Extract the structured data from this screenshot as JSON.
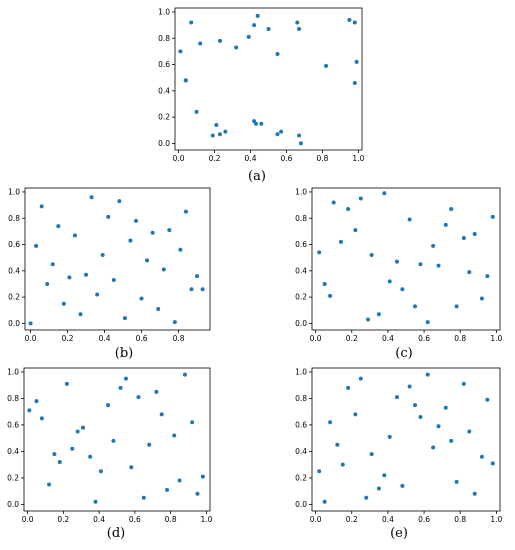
{
  "chart_data": [
    {
      "type": "scatter",
      "panel_label": "(a)",
      "color": "#1f77b4",
      "xlim": [
        -0.02,
        1.02
      ],
      "ylim": [
        -0.05,
        1.03
      ],
      "xticks": [
        "0.0",
        "0.2",
        "0.4",
        "0.6",
        "0.8",
        "1.0"
      ],
      "yticks": [
        "0.0",
        "0.2",
        "0.4",
        "0.6",
        "0.8",
        "1.0"
      ],
      "x": [
        0.01,
        0.04,
        0.07,
        0.12,
        0.23,
        0.32,
        0.39,
        0.42,
        0.44,
        0.5,
        0.55,
        0.66,
        0.67,
        0.95,
        0.98,
        0.99,
        0.82,
        0.04,
        0.1,
        0.21,
        0.23,
        0.26,
        0.19,
        0.42,
        0.43,
        0.46,
        0.55,
        0.57,
        0.67,
        0.68,
        0.98
      ],
      "y": [
        0.7,
        0.48,
        0.92,
        0.76,
        0.78,
        0.73,
        0.81,
        0.9,
        0.97,
        0.87,
        0.68,
        0.92,
        0.87,
        0.94,
        0.92,
        0.62,
        0.59,
        0.48,
        0.24,
        0.14,
        0.07,
        0.09,
        0.06,
        0.17,
        0.15,
        0.15,
        0.07,
        0.09,
        0.06,
        0.0,
        0.46
      ]
    },
    {
      "type": "scatter",
      "panel_label": "(b)",
      "color": "#1f77b4",
      "xlim": [
        -0.03,
        0.97
      ],
      "ylim": [
        -0.05,
        1.03
      ],
      "xticks": [
        "0.0",
        "0.2",
        "0.4",
        "0.6",
        "0.8"
      ],
      "yticks": [
        "0.0",
        "0.2",
        "0.4",
        "0.6",
        "0.8",
        "1.0"
      ],
      "x": [
        0.0,
        0.03,
        0.06,
        0.09,
        0.12,
        0.15,
        0.18,
        0.21,
        0.24,
        0.27,
        0.3,
        0.33,
        0.36,
        0.39,
        0.42,
        0.45,
        0.48,
        0.51,
        0.54,
        0.57,
        0.6,
        0.63,
        0.66,
        0.69,
        0.72,
        0.75,
        0.78,
        0.81,
        0.84,
        0.87,
        0.9,
        0.93
      ],
      "y": [
        0.0,
        0.59,
        0.89,
        0.3,
        0.45,
        0.74,
        0.15,
        0.35,
        0.67,
        0.07,
        0.37,
        0.96,
        0.22,
        0.52,
        0.81,
        0.33,
        0.93,
        0.04,
        0.63,
        0.78,
        0.19,
        0.48,
        0.69,
        0.11,
        0.41,
        0.71,
        0.01,
        0.56,
        0.85,
        0.26,
        0.36,
        0.26
      ]
    },
    {
      "type": "scatter",
      "panel_label": "(c)",
      "color": "#1f77b4",
      "xlim": [
        -0.02,
        1.02
      ],
      "ylim": [
        -0.05,
        1.03
      ],
      "xticks": [
        "0.0",
        "0.2",
        "0.4",
        "0.6",
        "0.8",
        "1.0"
      ],
      "yticks": [
        "0.0",
        "0.2",
        "0.4",
        "0.6",
        "0.8",
        "1.0"
      ],
      "x": [
        0.02,
        0.05,
        0.08,
        0.1,
        0.14,
        0.18,
        0.22,
        0.25,
        0.29,
        0.31,
        0.35,
        0.38,
        0.41,
        0.45,
        0.48,
        0.52,
        0.55,
        0.58,
        0.62,
        0.65,
        0.68,
        0.72,
        0.75,
        0.78,
        0.82,
        0.85,
        0.88,
        0.92,
        0.95,
        0.98
      ],
      "y": [
        0.54,
        0.3,
        0.21,
        0.92,
        0.62,
        0.87,
        0.71,
        0.95,
        0.03,
        0.52,
        0.07,
        0.99,
        0.32,
        0.47,
        0.26,
        0.79,
        0.13,
        0.45,
        0.01,
        0.59,
        0.44,
        0.75,
        0.87,
        0.13,
        0.65,
        0.39,
        0.68,
        0.19,
        0.36,
        0.81
      ]
    },
    {
      "type": "scatter",
      "panel_label": "(d)",
      "color": "#1f77b4",
      "xlim": [
        -0.02,
        1.02
      ],
      "ylim": [
        -0.05,
        1.03
      ],
      "xticks": [
        "0.0",
        "0.2",
        "0.4",
        "0.6",
        "0.8",
        "1.0"
      ],
      "yticks": [
        "0.0",
        "0.2",
        "0.4",
        "0.6",
        "0.8",
        "1.0"
      ],
      "x": [
        0.01,
        0.05,
        0.08,
        0.12,
        0.15,
        0.18,
        0.22,
        0.25,
        0.28,
        0.31,
        0.35,
        0.38,
        0.41,
        0.45,
        0.48,
        0.52,
        0.55,
        0.58,
        0.62,
        0.65,
        0.68,
        0.72,
        0.75,
        0.78,
        0.82,
        0.85,
        0.88,
        0.92,
        0.95,
        0.98
      ],
      "y": [
        0.71,
        0.78,
        0.65,
        0.15,
        0.38,
        0.32,
        0.91,
        0.42,
        0.55,
        0.58,
        0.36,
        0.02,
        0.25,
        0.75,
        0.48,
        0.88,
        0.95,
        0.28,
        0.81,
        0.05,
        0.45,
        0.85,
        0.68,
        0.11,
        0.52,
        0.18,
        0.98,
        0.62,
        0.08,
        0.21
      ]
    },
    {
      "type": "scatter",
      "panel_label": "(e)",
      "color": "#1f77b4",
      "xlim": [
        -0.02,
        1.02
      ],
      "ylim": [
        -0.05,
        1.03
      ],
      "xticks": [
        "0.0",
        "0.2",
        "0.4",
        "0.6",
        "0.8",
        "1.0"
      ],
      "yticks": [
        "0.0",
        "0.2",
        "0.4",
        "0.6",
        "0.8",
        "1.0"
      ],
      "x": [
        0.02,
        0.05,
        0.08,
        0.12,
        0.15,
        0.18,
        0.22,
        0.25,
        0.28,
        0.31,
        0.35,
        0.38,
        0.41,
        0.45,
        0.48,
        0.52,
        0.55,
        0.58,
        0.62,
        0.65,
        0.68,
        0.72,
        0.75,
        0.78,
        0.82,
        0.85,
        0.88,
        0.92,
        0.95,
        0.98
      ],
      "y": [
        0.25,
        0.02,
        0.62,
        0.45,
        0.3,
        0.88,
        0.68,
        0.95,
        0.05,
        0.38,
        0.12,
        0.22,
        0.51,
        0.81,
        0.14,
        0.89,
        0.75,
        0.66,
        0.98,
        0.43,
        0.59,
        0.73,
        0.48,
        0.17,
        0.91,
        0.55,
        0.08,
        0.36,
        0.79,
        0.31
      ]
    }
  ]
}
